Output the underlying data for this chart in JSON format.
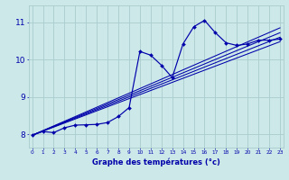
{
  "bg_color": "#cce8e8",
  "line_color": "#0000aa",
  "grid_color": "#aacccc",
  "ylabel_vals": [
    8,
    9,
    10,
    11
  ],
  "xlim": [
    -0.3,
    23.3
  ],
  "ylim": [
    7.65,
    11.45
  ],
  "xlabel": "Graphe des températures (°c)",
  "noisy_x": [
    0,
    1,
    2,
    3,
    4,
    5,
    6,
    7,
    8,
    9,
    10,
    11,
    12,
    13,
    14,
    15,
    16,
    17,
    18,
    19,
    20,
    21,
    22,
    23
  ],
  "noisy_y": [
    7.98,
    8.08,
    8.05,
    8.18,
    8.25,
    8.26,
    8.27,
    8.32,
    8.48,
    8.72,
    10.22,
    10.12,
    9.85,
    9.52,
    10.42,
    10.88,
    11.05,
    10.72,
    10.45,
    10.38,
    10.42,
    10.52,
    10.52,
    10.55
  ],
  "reg_lines": [
    {
      "x": [
        0,
        23
      ],
      "y": [
        7.98,
        10.48
      ]
    },
    {
      "x": [
        0,
        23
      ],
      "y": [
        7.98,
        10.6
      ]
    },
    {
      "x": [
        0,
        23
      ],
      "y": [
        7.98,
        10.72
      ]
    },
    {
      "x": [
        0,
        23
      ],
      "y": [
        7.98,
        10.85
      ]
    }
  ]
}
